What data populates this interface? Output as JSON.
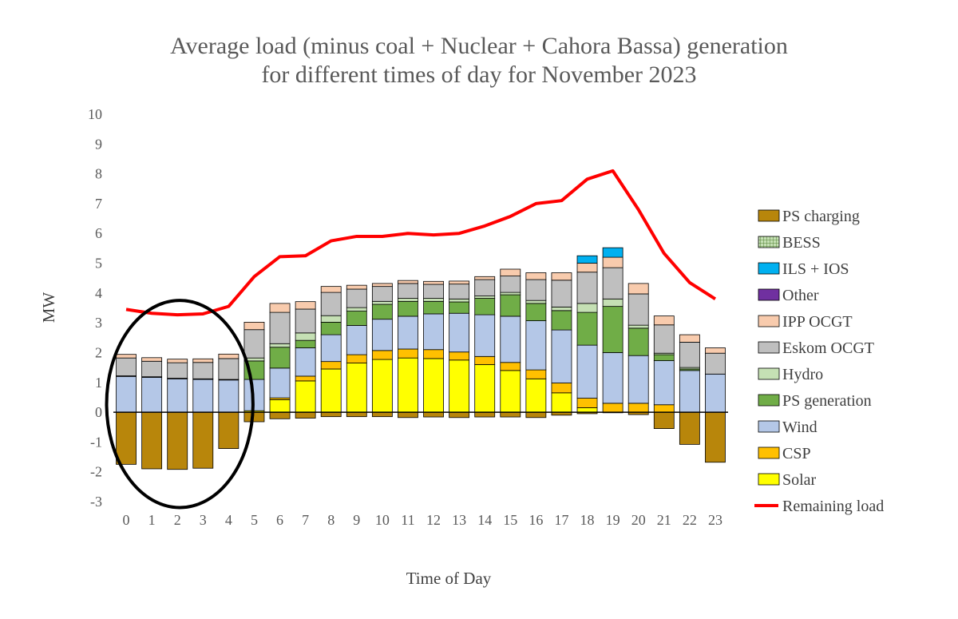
{
  "chart_data": {
    "type": "bar",
    "stacked": true,
    "title_line1": "Average load (minus coal + Nuclear + Cahora Bassa) generation",
    "title_line2": "for different times of day for November 2023",
    "xlabel": "Time of Day",
    "ylabel": "MW",
    "ylim": [
      -3,
      10
    ],
    "yticks": [
      "-3",
      "-2",
      "-1",
      "0",
      "1",
      "2",
      "3",
      "4",
      "5",
      "6",
      "7",
      "8",
      "9",
      "10"
    ],
    "categories": [
      "0",
      "1",
      "2",
      "3",
      "4",
      "5",
      "6",
      "7",
      "8",
      "9",
      "10",
      "11",
      "12",
      "13",
      "14",
      "15",
      "16",
      "17",
      "18",
      "19",
      "20",
      "21",
      "22",
      "23"
    ],
    "legend_position": "right",
    "grid": false,
    "series": [
      {
        "name": "PS charging",
        "color": "#b8860b",
        "kind": "bar",
        "values": [
          -1.75,
          -1.9,
          -1.92,
          -1.88,
          -1.22,
          -0.32,
          -0.22,
          -0.2,
          -0.15,
          -0.15,
          -0.15,
          -0.18,
          -0.16,
          -0.18,
          -0.16,
          -0.16,
          -0.18,
          -0.1,
          -0.05,
          -0.02,
          -0.08,
          -0.55,
          -1.08,
          -1.68
        ]
      },
      {
        "name": "Solar",
        "color": "#ffff00",
        "kind": "bar",
        "values": [
          0,
          0,
          0,
          0,
          0,
          0.05,
          0.42,
          1.05,
          1.45,
          1.65,
          1.77,
          1.82,
          1.8,
          1.75,
          1.6,
          1.4,
          1.12,
          0.65,
          0.15,
          0,
          0,
          0,
          0,
          0
        ]
      },
      {
        "name": "CSP",
        "color": "#ffc000",
        "kind": "bar",
        "values": [
          0,
          0,
          0,
          0,
          0,
          0,
          0.06,
          0.16,
          0.25,
          0.28,
          0.3,
          0.3,
          0.3,
          0.27,
          0.27,
          0.27,
          0.3,
          0.33,
          0.32,
          0.3,
          0.3,
          0.25,
          0,
          0
        ]
      },
      {
        "name": "Wind",
        "color": "#b4c7e7",
        "kind": "bar",
        "values": [
          1.2,
          1.17,
          1.12,
          1.1,
          1.08,
          1.05,
          1.0,
          0.95,
          0.9,
          0.98,
          1.05,
          1.1,
          1.2,
          1.3,
          1.4,
          1.55,
          1.65,
          1.78,
          1.78,
          1.7,
          1.6,
          1.48,
          1.4,
          1.28
        ]
      },
      {
        "name": "PS generation",
        "color": "#70ad47",
        "kind": "bar",
        "values": [
          0,
          0,
          0,
          0,
          0,
          0.62,
          0.7,
          0.25,
          0.42,
          0.48,
          0.5,
          0.5,
          0.42,
          0.38,
          0.55,
          0.72,
          0.58,
          0.65,
          1.1,
          1.55,
          0.92,
          0.2,
          0.05,
          0
        ]
      },
      {
        "name": "Hydro",
        "color": "#c5e0b4",
        "kind": "bar",
        "values": [
          0.02,
          0.02,
          0.02,
          0.02,
          0.02,
          0.1,
          0.12,
          0.25,
          0.22,
          0.12,
          0.1,
          0.1,
          0.1,
          0.1,
          0.08,
          0.08,
          0.1,
          0.12,
          0.3,
          0.25,
          0.1,
          0.05,
          0.05,
          0
        ]
      },
      {
        "name": "Eskom OCGT",
        "color": "#bfbfbf",
        "kind": "bar",
        "values": [
          0.6,
          0.52,
          0.52,
          0.55,
          0.7,
          0.95,
          1.05,
          0.8,
          0.78,
          0.62,
          0.5,
          0.5,
          0.47,
          0.5,
          0.55,
          0.55,
          0.7,
          0.9,
          1.05,
          1.05,
          1.05,
          0.95,
          0.85,
          0.7
        ]
      },
      {
        "name": "IPP OCGT",
        "color": "#f8cbad",
        "kind": "bar",
        "values": [
          0.12,
          0.12,
          0.12,
          0.12,
          0.15,
          0.25,
          0.3,
          0.25,
          0.2,
          0.13,
          0.1,
          0.1,
          0.1,
          0.1,
          0.1,
          0.23,
          0.23,
          0.25,
          0.3,
          0.35,
          0.35,
          0.3,
          0.25,
          0.18
        ]
      },
      {
        "name": "Other",
        "color": "#7030a0",
        "kind": "bar",
        "values": [
          0,
          0,
          0,
          0,
          0,
          0,
          0,
          0,
          0,
          0,
          0,
          0,
          0,
          0,
          0,
          0,
          0,
          0,
          0,
          0,
          0,
          0,
          0,
          0
        ]
      },
      {
        "name": "ILS + IOS",
        "color": "#00b0f0",
        "kind": "bar",
        "values": [
          0,
          0,
          0,
          0,
          0,
          0,
          0,
          0,
          0,
          0,
          0,
          0,
          0,
          0,
          0,
          0,
          0,
          0,
          0.25,
          0.32,
          0,
          0,
          0,
          0
        ]
      },
      {
        "name": "BESS",
        "color": "#c5e0b4",
        "kind": "bar",
        "pattern": "grid",
        "values": [
          0,
          0,
          0,
          0,
          0,
          0,
          0,
          0,
          0,
          0,
          0,
          0,
          0,
          0,
          0,
          0,
          0,
          0,
          0,
          0,
          0,
          0,
          0,
          0
        ]
      },
      {
        "name": "Remaining load",
        "color": "#ff0000",
        "kind": "line",
        "values": [
          3.45,
          3.32,
          3.27,
          3.3,
          3.55,
          4.55,
          5.22,
          5.25,
          5.75,
          5.9,
          5.9,
          6.0,
          5.95,
          6.0,
          6.25,
          6.57,
          7.0,
          7.1,
          7.82,
          8.1,
          6.8,
          5.33,
          4.35,
          3.8
        ]
      }
    ],
    "legend_order": [
      "PS charging",
      "BESS",
      "ILS + IOS",
      "Other",
      "IPP OCGT",
      "Eskom OCGT",
      "Hydro",
      "PS generation",
      "Wind",
      "CSP",
      "Solar",
      "Remaining load"
    ],
    "annotation": {
      "shape": "ellipse",
      "color": "#000000",
      "encloses_categories": [
        "0",
        "1",
        "2",
        "3",
        "4"
      ]
    }
  }
}
